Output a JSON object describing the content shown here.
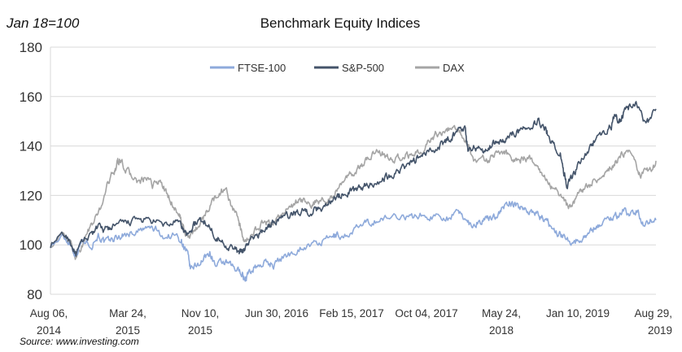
{
  "chart_data": {
    "type": "line",
    "title": "Benchmark Equity Indices",
    "unit_label": "Jan 18=100",
    "source": "Source: www.investing.com",
    "ylim": [
      80,
      180
    ],
    "yticks": [
      "80",
      "100",
      "120",
      "140",
      "160",
      "180"
    ],
    "xlim": [
      0,
      1900
    ],
    "xticks": [
      {
        "line1": "Aug 06,",
        "line2": "2014"
      },
      {
        "line1": "Mar 24,",
        "line2": "2015"
      },
      {
        "line1": "Nov 10,",
        "line2": "2015"
      },
      {
        "line1": "Jun 30, 2016",
        "line2": ""
      },
      {
        "line1": "Feb 15, 2017",
        "line2": ""
      },
      {
        "line1": "Oct 04, 2017",
        "line2": ""
      },
      {
        "line1": "May 24,",
        "line2": "2018"
      },
      {
        "line1": "Jan 10, 2019",
        "line2": ""
      },
      {
        "line1": "Aug 29,",
        "line2": "2019"
      }
    ],
    "grid": "horizontal",
    "legend_position": "top",
    "series": [
      {
        "name": "FTSE-100",
        "color": "#8eaadb",
        "points": [
          [
            0,
            100
          ],
          [
            40,
            103
          ],
          [
            60,
            101
          ],
          [
            80,
            96
          ],
          [
            100,
            102
          ],
          [
            130,
            100
          ],
          [
            150,
            104
          ],
          [
            170,
            101
          ],
          [
            190,
            102
          ],
          [
            210,
            103
          ],
          [
            230,
            104
          ],
          [
            260,
            105
          ],
          [
            290,
            106
          ],
          [
            310,
            107
          ],
          [
            330,
            106
          ],
          [
            360,
            103
          ],
          [
            390,
            104
          ],
          [
            410,
            102
          ],
          [
            420,
            99
          ],
          [
            430,
            96
          ],
          [
            440,
            90
          ],
          [
            460,
            92
          ],
          [
            480,
            94
          ],
          [
            500,
            97
          ],
          [
            520,
            91
          ],
          [
            540,
            93
          ],
          [
            560,
            92
          ],
          [
            580,
            90
          ],
          [
            600,
            89
          ],
          [
            610,
            86
          ],
          [
            620,
            88
          ],
          [
            640,
            91
          ],
          [
            660,
            92
          ],
          [
            680,
            93
          ],
          [
            700,
            92
          ],
          [
            730,
            95
          ],
          [
            760,
            97
          ],
          [
            790,
            99
          ],
          [
            820,
            100
          ],
          [
            850,
            101
          ],
          [
            880,
            103
          ],
          [
            900,
            104
          ],
          [
            920,
            103
          ],
          [
            950,
            106
          ],
          [
            980,
            108
          ],
          [
            1000,
            109
          ],
          [
            1030,
            110
          ],
          [
            1060,
            111
          ],
          [
            1100,
            112
          ],
          [
            1130,
            111
          ],
          [
            1160,
            112
          ],
          [
            1190,
            111
          ],
          [
            1220,
            112
          ],
          [
            1250,
            111
          ],
          [
            1280,
            113
          ],
          [
            1300,
            111
          ],
          [
            1320,
            108
          ],
          [
            1340,
            109
          ],
          [
            1360,
            110
          ],
          [
            1380,
            111
          ],
          [
            1400,
            112
          ],
          [
            1420,
            115
          ],
          [
            1440,
            117
          ],
          [
            1460,
            116
          ],
          [
            1480,
            115
          ],
          [
            1500,
            114
          ],
          [
            1520,
            113
          ],
          [
            1540,
            111
          ],
          [
            1560,
            109
          ],
          [
            1580,
            106
          ],
          [
            1600,
            104
          ],
          [
            1620,
            103
          ],
          [
            1640,
            101
          ],
          [
            1660,
            102
          ],
          [
            1680,
            104
          ],
          [
            1700,
            106
          ],
          [
            1720,
            108
          ],
          [
            1740,
            110
          ],
          [
            1760,
            111
          ],
          [
            1780,
            112
          ],
          [
            1800,
            114
          ],
          [
            1820,
            112
          ],
          [
            1840,
            114
          ],
          [
            1860,
            108
          ],
          [
            1880,
            110
          ],
          [
            1900,
            110
          ]
        ]
      },
      {
        "name": "S&P-500",
        "color": "#44546a",
        "points": [
          [
            0,
            100
          ],
          [
            40,
            104
          ],
          [
            60,
            102
          ],
          [
            80,
            96
          ],
          [
            100,
            101
          ],
          [
            130,
            105
          ],
          [
            150,
            107
          ],
          [
            170,
            106
          ],
          [
            190,
            107
          ],
          [
            210,
            108
          ],
          [
            240,
            109
          ],
          [
            270,
            110
          ],
          [
            300,
            110
          ],
          [
            330,
            109
          ],
          [
            360,
            108
          ],
          [
            390,
            109
          ],
          [
            410,
            108
          ],
          [
            420,
            105
          ],
          [
            430,
            104
          ],
          [
            450,
            108
          ],
          [
            470,
            110
          ],
          [
            490,
            109
          ],
          [
            510,
            105
          ],
          [
            530,
            102
          ],
          [
            550,
            100
          ],
          [
            570,
            99
          ],
          [
            590,
            97
          ],
          [
            600,
            97
          ],
          [
            610,
            99
          ],
          [
            630,
            102
          ],
          [
            650,
            104
          ],
          [
            670,
            106
          ],
          [
            690,
            108
          ],
          [
            710,
            110
          ],
          [
            730,
            111
          ],
          [
            750,
            112
          ],
          [
            770,
            113
          ],
          [
            790,
            114
          ],
          [
            810,
            113
          ],
          [
            830,
            114
          ],
          [
            850,
            115
          ],
          [
            870,
            117
          ],
          [
            890,
            119
          ],
          [
            910,
            120
          ],
          [
            930,
            121
          ],
          [
            950,
            122
          ],
          [
            970,
            123
          ],
          [
            990,
            124
          ],
          [
            1010,
            125
          ],
          [
            1040,
            126
          ],
          [
            1060,
            128
          ],
          [
            1080,
            129
          ],
          [
            1100,
            131
          ],
          [
            1120,
            132
          ],
          [
            1140,
            134
          ],
          [
            1160,
            136
          ],
          [
            1180,
            137
          ],
          [
            1200,
            138
          ],
          [
            1220,
            140
          ],
          [
            1240,
            142
          ],
          [
            1260,
            144
          ],
          [
            1280,
            146
          ],
          [
            1300,
            148
          ],
          [
            1310,
            138
          ],
          [
            1330,
            140
          ],
          [
            1350,
            138
          ],
          [
            1370,
            139
          ],
          [
            1390,
            141
          ],
          [
            1410,
            142
          ],
          [
            1430,
            143
          ],
          [
            1450,
            145
          ],
          [
            1470,
            146
          ],
          [
            1490,
            147
          ],
          [
            1510,
            149
          ],
          [
            1530,
            150
          ],
          [
            1550,
            148
          ],
          [
            1560,
            145
          ],
          [
            1580,
            140
          ],
          [
            1600,
            137
          ],
          [
            1610,
            130
          ],
          [
            1620,
            124
          ],
          [
            1640,
            128
          ],
          [
            1660,
            133
          ],
          [
            1680,
            137
          ],
          [
            1700,
            141
          ],
          [
            1720,
            144
          ],
          [
            1740,
            146
          ],
          [
            1760,
            148
          ],
          [
            1770,
            152
          ],
          [
            1780,
            151
          ],
          [
            1790,
            150
          ],
          [
            1800,
            154
          ],
          [
            1820,
            156
          ],
          [
            1840,
            157
          ],
          [
            1860,
            151
          ],
          [
            1880,
            150
          ],
          [
            1900,
            155
          ]
        ]
      },
      {
        "name": "DAX",
        "color": "#a5a5a5",
        "points": [
          [
            0,
            100
          ],
          [
            40,
            104
          ],
          [
            60,
            101
          ],
          [
            80,
            95
          ],
          [
            100,
            100
          ],
          [
            120,
            106
          ],
          [
            140,
            110
          ],
          [
            160,
            116
          ],
          [
            180,
            125
          ],
          [
            200,
            130
          ],
          [
            210,
            133
          ],
          [
            220,
            134
          ],
          [
            240,
            130
          ],
          [
            260,
            127
          ],
          [
            280,
            125
          ],
          [
            300,
            127
          ],
          [
            320,
            124
          ],
          [
            340,
            126
          ],
          [
            360,
            122
          ],
          [
            380,
            117
          ],
          [
            400,
            113
          ],
          [
            410,
            110
          ],
          [
            420,
            106
          ],
          [
            430,
            103
          ],
          [
            450,
            105
          ],
          [
            470,
            109
          ],
          [
            490,
            113
          ],
          [
            510,
            118
          ],
          [
            530,
            121
          ],
          [
            550,
            123
          ],
          [
            570,
            115
          ],
          [
            590,
            110
          ],
          [
            600,
            104
          ],
          [
            610,
            100
          ],
          [
            630,
            104
          ],
          [
            650,
            107
          ],
          [
            670,
            109
          ],
          [
            690,
            108
          ],
          [
            710,
            111
          ],
          [
            730,
            113
          ],
          [
            750,
            115
          ],
          [
            770,
            117
          ],
          [
            790,
            118
          ],
          [
            810,
            116
          ],
          [
            830,
            117
          ],
          [
            850,
            118
          ],
          [
            870,
            118
          ],
          [
            890,
            120
          ],
          [
            910,
            124
          ],
          [
            930,
            127
          ],
          [
            950,
            129
          ],
          [
            970,
            131
          ],
          [
            990,
            134
          ],
          [
            1010,
            137
          ],
          [
            1030,
            138
          ],
          [
            1050,
            136
          ],
          [
            1070,
            134
          ],
          [
            1090,
            135
          ],
          [
            1110,
            136
          ],
          [
            1130,
            136
          ],
          [
            1150,
            137
          ],
          [
            1170,
            139
          ],
          [
            1190,
            142
          ],
          [
            1210,
            145
          ],
          [
            1230,
            146
          ],
          [
            1250,
            147
          ],
          [
            1270,
            146
          ],
          [
            1290,
            145
          ],
          [
            1310,
            140
          ],
          [
            1330,
            134
          ],
          [
            1350,
            136
          ],
          [
            1370,
            134
          ],
          [
            1390,
            136
          ],
          [
            1410,
            138
          ],
          [
            1430,
            137
          ],
          [
            1450,
            135
          ],
          [
            1470,
            134
          ],
          [
            1490,
            135
          ],
          [
            1510,
            134
          ],
          [
            1530,
            132
          ],
          [
            1550,
            128
          ],
          [
            1570,
            124
          ],
          [
            1590,
            122
          ],
          [
            1610,
            118
          ],
          [
            1630,
            115
          ],
          [
            1650,
            119
          ],
          [
            1670,
            122
          ],
          [
            1690,
            124
          ],
          [
            1710,
            126
          ],
          [
            1730,
            128
          ],
          [
            1750,
            130
          ],
          [
            1770,
            133
          ],
          [
            1790,
            136
          ],
          [
            1810,
            138
          ],
          [
            1830,
            136
          ],
          [
            1850,
            128
          ],
          [
            1870,
            130
          ],
          [
            1890,
            131
          ],
          [
            1900,
            134
          ]
        ]
      }
    ]
  }
}
